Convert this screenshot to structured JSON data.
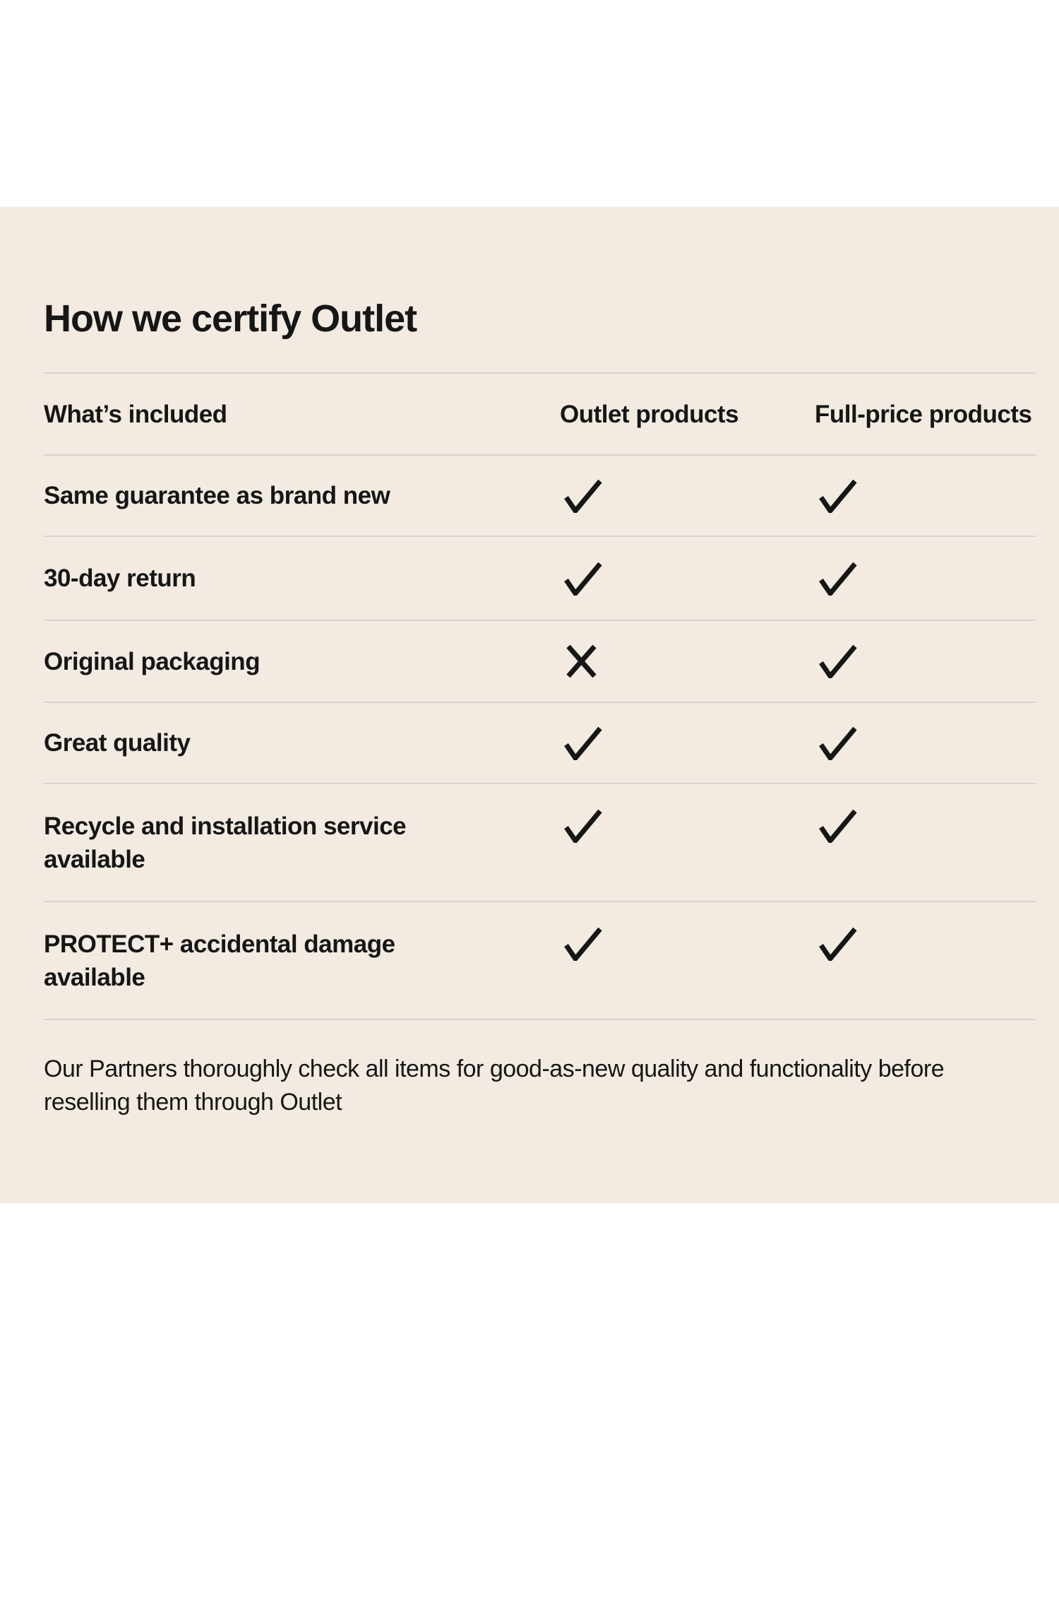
{
  "colors": {
    "page_background": "#ffffff",
    "panel_background": "#f3ebe1",
    "divider": "#d7d4ce",
    "text": "#161616"
  },
  "section_title": "How we certify Outlet",
  "table": {
    "columns": [
      "What’s included",
      "Outlet products",
      "Full-price products"
    ],
    "rows": [
      {
        "label": "Same guarantee as brand new",
        "outlet": "check",
        "full_price": "check"
      },
      {
        "label": "30-day return",
        "outlet": "check",
        "full_price": "check"
      },
      {
        "label": "Original packaging",
        "outlet": "cross",
        "full_price": "check"
      },
      {
        "label": "Great quality",
        "outlet": "check",
        "full_price": "check"
      },
      {
        "label": "Recycle and installation service available",
        "outlet": "check",
        "full_price": "check"
      },
      {
        "label": "PROTECT+ accidental damage available",
        "outlet": "check",
        "full_price": "check"
      }
    ]
  },
  "icons": {
    "check": "✓",
    "cross": "✕"
  },
  "footnote": {
    "lines": [
      "Our Partners thoroughly check all items for good-as-new quality and functionality before",
      "reselling them through Outlet"
    ]
  }
}
